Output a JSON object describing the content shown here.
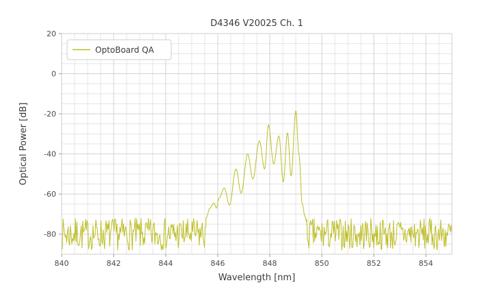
{
  "figure": {
    "title": "D4346 V20025 Ch. 1",
    "xlabel": "Wavelength [nm]",
    "ylabel": "Optical Power [dB]",
    "legend": {
      "label": "OptoBoard QA"
    }
  },
  "chart_data": {
    "type": "line",
    "title": "D4346 V20025 Ch. 1",
    "xlabel": "Wavelength [nm]",
    "ylabel": "Optical Power [dB]",
    "xlim": [
      840,
      855
    ],
    "ylim": [
      -90,
      20
    ],
    "x_ticks": [
      840,
      842,
      844,
      846,
      848,
      850,
      852,
      854
    ],
    "y_ticks": [
      20,
      0,
      -20,
      -40,
      -60,
      -80
    ],
    "grid": {
      "on": true,
      "minor_x_step": 0.5,
      "minor_y_step": 5,
      "minor_color": "#e4e4e4",
      "major_color": "#d2d2d2"
    },
    "legend_position": "upper left",
    "series": [
      {
        "name": "OptoBoard QA",
        "color": "#bcbd22",
        "noise_floor": {
          "mean": -80,
          "amplitude": 8,
          "step": 0.028,
          "seed": 7,
          "x_ranges": [
            [
              840.0,
              845.55
            ],
            [
              849.42,
              855.0
            ]
          ]
        },
        "signal_anchors": [
          [
            845.55,
            -72.0
          ],
          [
            845.7,
            -67.0
          ],
          [
            845.85,
            -64.5
          ],
          [
            845.95,
            -67.0
          ],
          [
            846.05,
            -62.0
          ],
          [
            846.25,
            -57.0
          ],
          [
            846.45,
            -65.5
          ],
          [
            846.7,
            -47.5
          ],
          [
            846.9,
            -59.5
          ],
          [
            847.15,
            -40.0
          ],
          [
            847.35,
            -52.5
          ],
          [
            847.6,
            -33.5
          ],
          [
            847.8,
            -47.5
          ],
          [
            847.95,
            -25.5
          ],
          [
            848.15,
            -45.0
          ],
          [
            848.35,
            -31.0
          ],
          [
            848.52,
            -54.0
          ],
          [
            848.68,
            -29.5
          ],
          [
            848.82,
            -51.0
          ],
          [
            849.0,
            -18.5
          ],
          [
            849.12,
            -40.0
          ],
          [
            849.25,
            -65.0
          ],
          [
            849.35,
            -71.0
          ],
          [
            849.42,
            -74.0
          ]
        ]
      }
    ]
  }
}
